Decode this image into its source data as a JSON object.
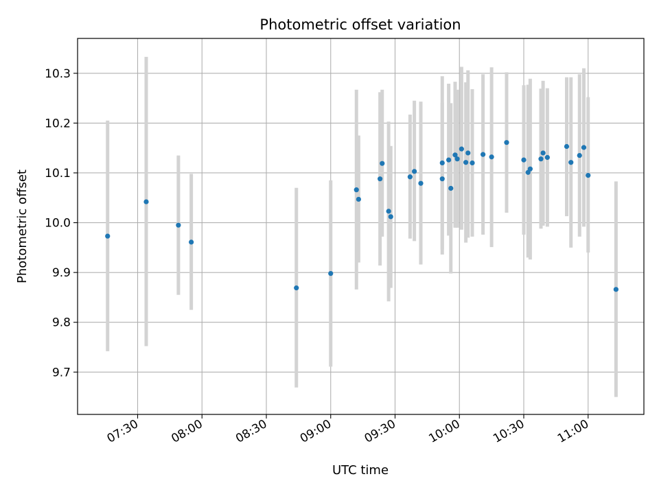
{
  "chart_data": {
    "type": "scatter",
    "title": "Photometric offset variation",
    "xlabel": "UTC time",
    "ylabel": "Photometric offset",
    "x_is_time": true,
    "xlim": [
      "07:02",
      "11:26"
    ],
    "ylim": [
      9.615,
      10.37
    ],
    "x_ticks": [
      "07:30",
      "08:00",
      "08:30",
      "09:00",
      "09:30",
      "10:00",
      "10:30",
      "11:00"
    ],
    "y_ticks": [
      9.7,
      9.8,
      9.9,
      10.0,
      10.1,
      10.2,
      10.3
    ],
    "y_tick_labels": [
      "9.7",
      "9.8",
      "9.9",
      "10.0",
      "10.1",
      "10.2",
      "10.3"
    ],
    "grid": true,
    "colors": {
      "point": "#1f77b4",
      "errorbar": "#d3d3d3",
      "grid": "#b0b0b0"
    },
    "series": [
      {
        "points": [
          {
            "x": "07:16",
            "y": 9.973,
            "err_low": 9.742,
            "err_high": 10.205
          },
          {
            "x": "07:34",
            "y": 10.042,
            "err_low": 9.752,
            "err_high": 10.333
          },
          {
            "x": "07:49",
            "y": 9.995,
            "err_low": 9.855,
            "err_high": 10.135
          },
          {
            "x": "07:55",
            "y": 9.961,
            "err_low": 9.825,
            "err_high": 10.098
          },
          {
            "x": "08:44",
            "y": 9.869,
            "err_low": 9.669,
            "err_high": 10.07
          },
          {
            "x": "09:00",
            "y": 9.898,
            "err_low": 9.711,
            "err_high": 10.085
          },
          {
            "x": "09:12",
            "y": 10.066,
            "err_low": 9.866,
            "err_high": 10.267
          },
          {
            "x": "09:13",
            "y": 10.047,
            "err_low": 9.92,
            "err_high": 10.175
          },
          {
            "x": "09:23",
            "y": 10.088,
            "err_low": 9.914,
            "err_high": 10.262
          },
          {
            "x": "09:24",
            "y": 10.119,
            "err_low": 9.972,
            "err_high": 10.267
          },
          {
            "x": "09:27",
            "y": 10.023,
            "err_low": 9.842,
            "err_high": 10.203
          },
          {
            "x": "09:28",
            "y": 10.012,
            "err_low": 9.869,
            "err_high": 10.154
          },
          {
            "x": "09:37",
            "y": 10.092,
            "err_low": 9.968,
            "err_high": 10.217
          },
          {
            "x": "09:39",
            "y": 10.103,
            "err_low": 9.963,
            "err_high": 10.245
          },
          {
            "x": "09:42",
            "y": 10.079,
            "err_low": 9.916,
            "err_high": 10.243
          },
          {
            "x": "09:52",
            "y": 10.12,
            "err_low": 9.946,
            "err_high": 10.294
          },
          {
            "x": "09:52",
            "y": 10.088,
            "err_low": 9.936,
            "err_high": 10.241
          },
          {
            "x": "09:55",
            "y": 10.126,
            "err_low": 9.974,
            "err_high": 10.279
          },
          {
            "x": "09:56",
            "y": 10.069,
            "err_low": 9.898,
            "err_high": 10.24
          },
          {
            "x": "09:58",
            "y": 10.136,
            "err_low": 9.99,
            "err_high": 10.283
          },
          {
            "x": "09:59",
            "y": 10.128,
            "err_low": 9.99,
            "err_high": 10.267
          },
          {
            "x": "10:01",
            "y": 10.148,
            "err_low": 9.986,
            "err_high": 10.313
          },
          {
            "x": "10:03",
            "y": 10.121,
            "err_low": 9.96,
            "err_high": 10.282
          },
          {
            "x": "10:04",
            "y": 10.14,
            "err_low": 9.97,
            "err_high": 10.306
          },
          {
            "x": "10:06",
            "y": 10.12,
            "err_low": 9.972,
            "err_high": 10.268
          },
          {
            "x": "10:11",
            "y": 10.137,
            "err_low": 9.976,
            "err_high": 10.298
          },
          {
            "x": "10:15",
            "y": 10.132,
            "err_low": 9.951,
            "err_high": 10.312
          },
          {
            "x": "10:22",
            "y": 10.161,
            "err_low": 10.02,
            "err_high": 10.302
          },
          {
            "x": "10:30",
            "y": 10.126,
            "err_low": 9.976,
            "err_high": 10.276
          },
          {
            "x": "10:32",
            "y": 10.101,
            "err_low": 9.93,
            "err_high": 10.277
          },
          {
            "x": "10:33",
            "y": 10.108,
            "err_low": 9.926,
            "err_high": 10.289
          },
          {
            "x": "10:38",
            "y": 10.128,
            "err_low": 9.988,
            "err_high": 10.269
          },
          {
            "x": "10:39",
            "y": 10.14,
            "err_low": 9.994,
            "err_high": 10.285
          },
          {
            "x": "10:41",
            "y": 10.131,
            "err_low": 9.992,
            "err_high": 10.27
          },
          {
            "x": "10:50",
            "y": 10.153,
            "err_low": 10.013,
            "err_high": 10.292
          },
          {
            "x": "10:52",
            "y": 10.121,
            "err_low": 9.95,
            "err_high": 10.292
          },
          {
            "x": "10:56",
            "y": 10.135,
            "err_low": 9.972,
            "err_high": 10.298
          },
          {
            "x": "10:58",
            "y": 10.151,
            "err_low": 9.992,
            "err_high": 10.31
          },
          {
            "x": "11:00",
            "y": 10.095,
            "err_low": 9.94,
            "err_high": 10.252
          },
          {
            "x": "11:13",
            "y": 9.866,
            "err_low": 9.65,
            "err_high": 10.083
          }
        ]
      }
    ]
  }
}
